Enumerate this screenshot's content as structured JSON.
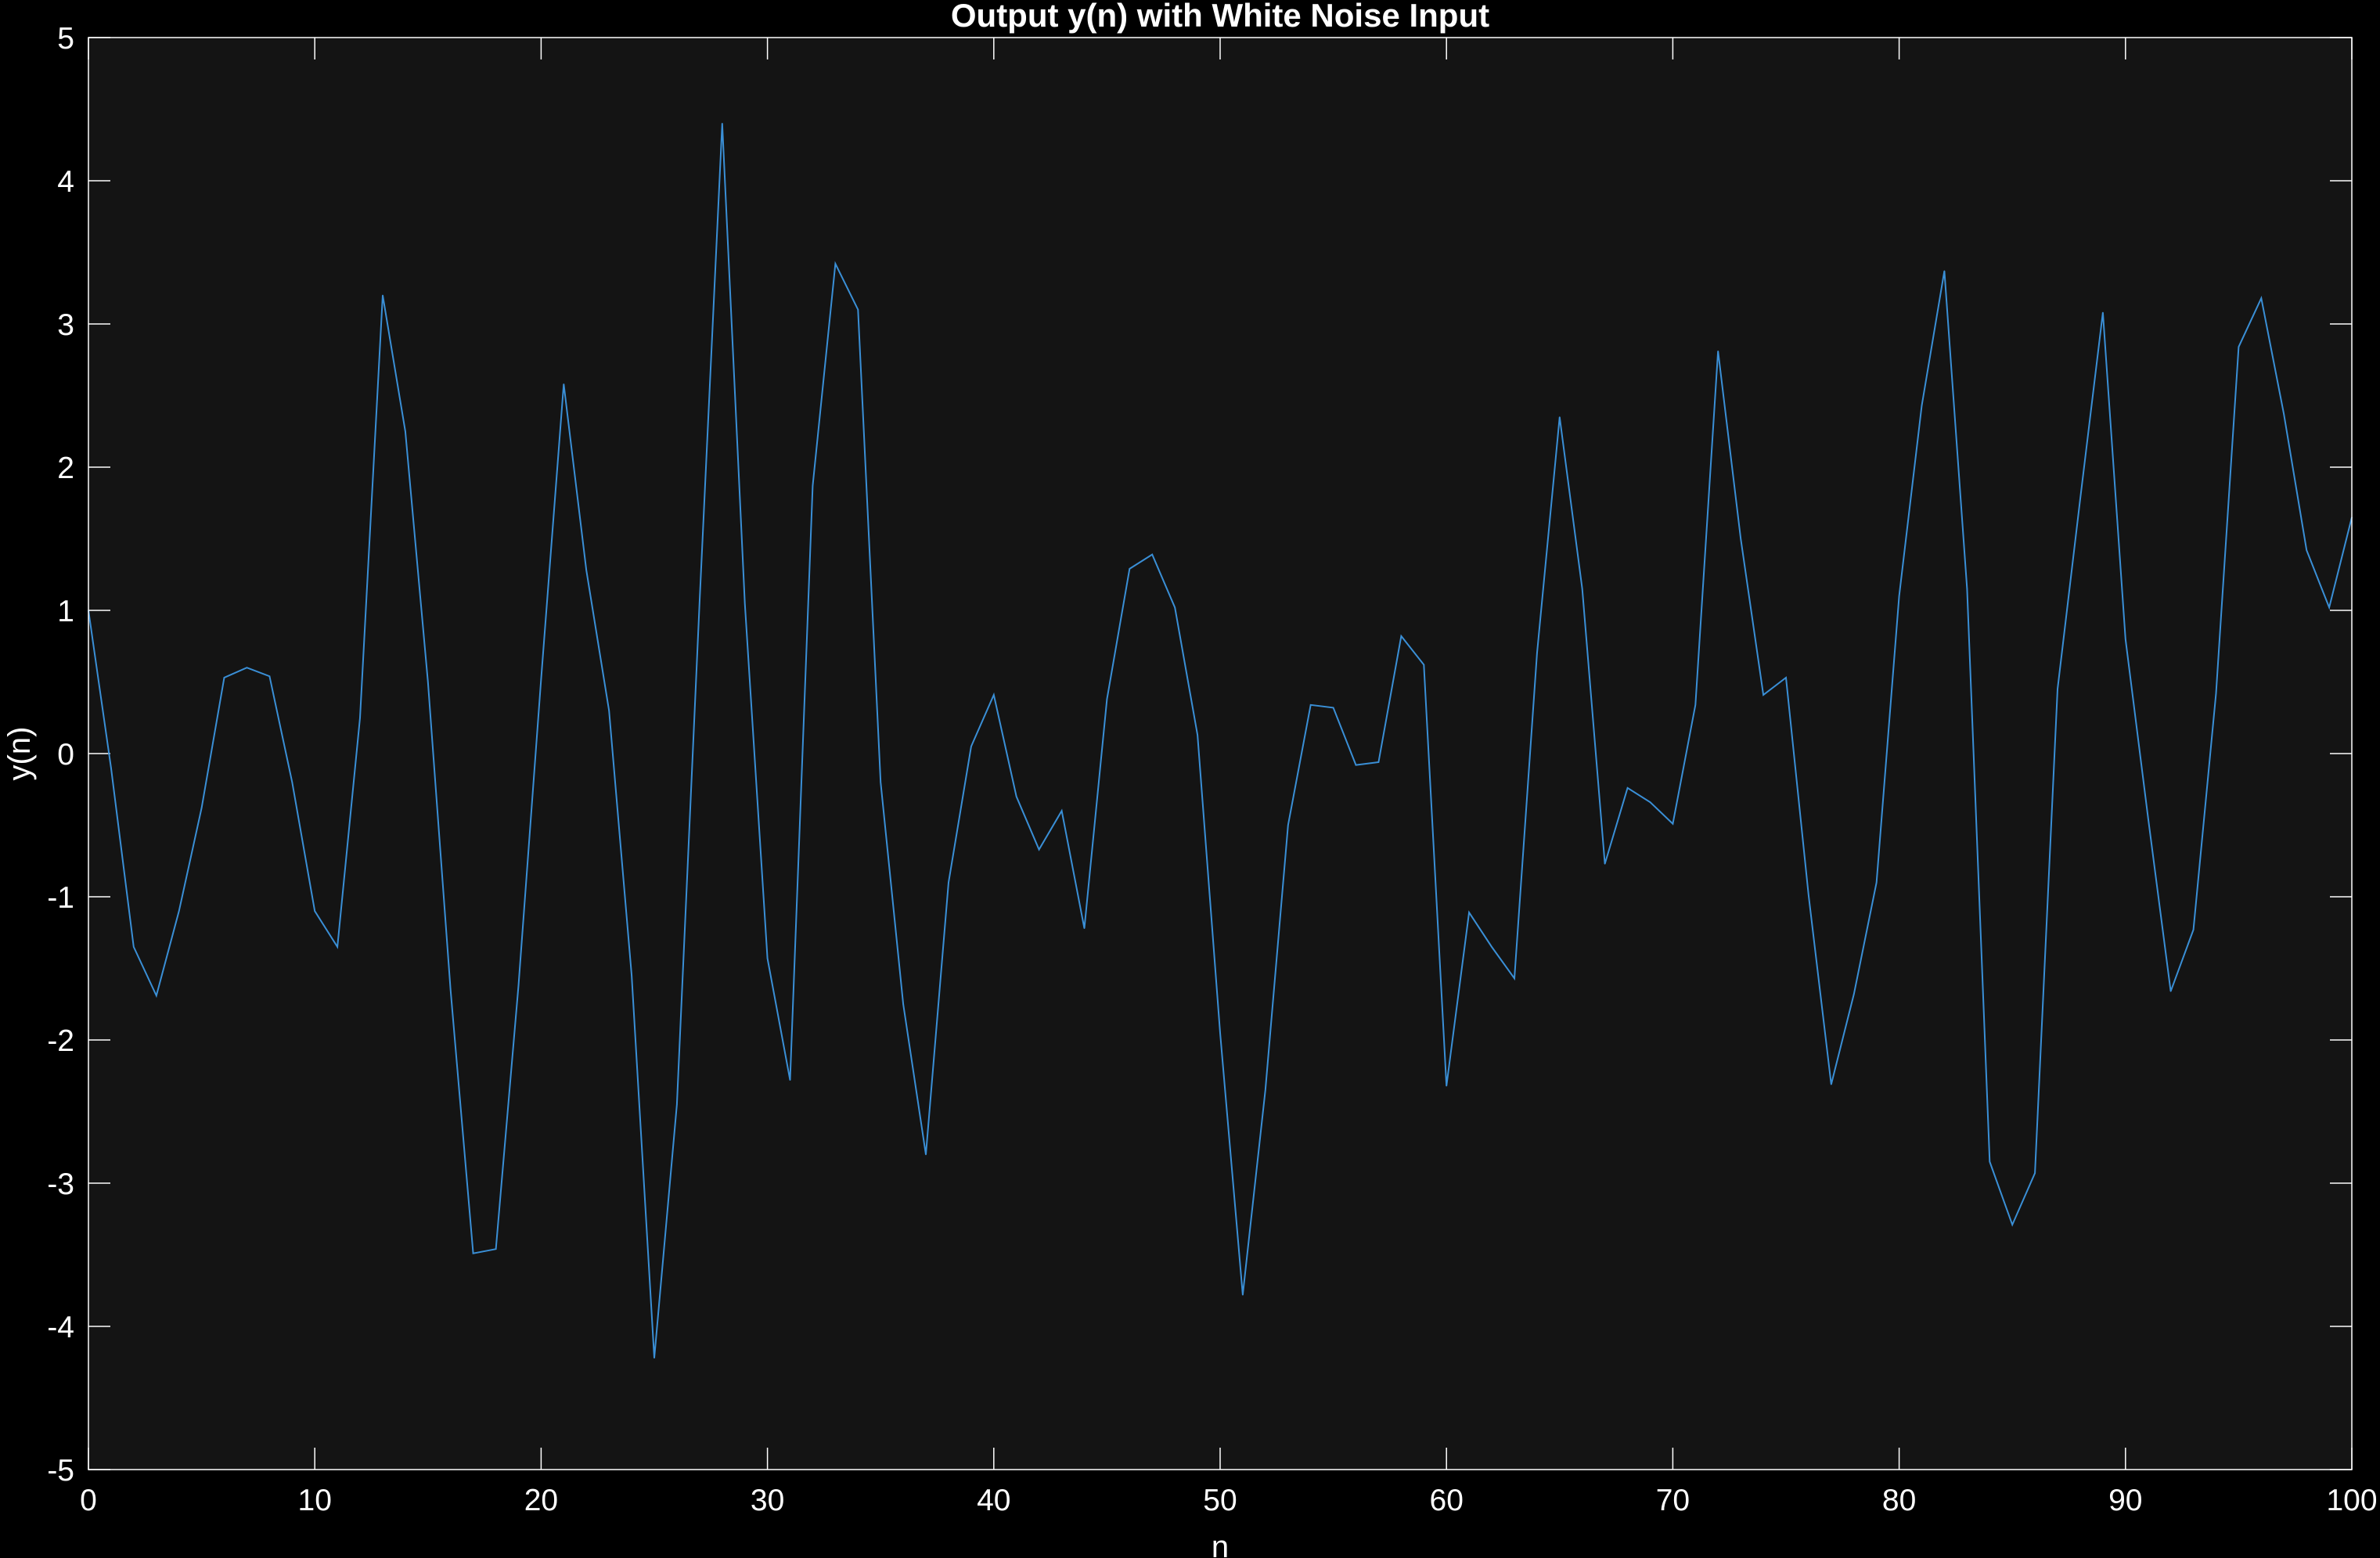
{
  "chart_data": {
    "type": "line",
    "title": "Output y(n) with White Noise Input",
    "xlabel": "n",
    "ylabel": "y(n)",
    "xlim": [
      0,
      100
    ],
    "ylim": [
      -5,
      5
    ],
    "xticks": [
      "0",
      "10",
      "20",
      "30",
      "40",
      "50",
      "60",
      "70",
      "80",
      "90",
      "100"
    ],
    "yticks": [
      "5",
      "4",
      "3",
      "2",
      "1",
      "0",
      "-1",
      "-2",
      "-3",
      "-4",
      "-5"
    ],
    "grid": false,
    "legend": "none",
    "series": [
      {
        "color": "#3a8fd6",
        "x": [
          0,
          1,
          2,
          3,
          4,
          5,
          6,
          7,
          8,
          9,
          10,
          11,
          12,
          13,
          14,
          15,
          16,
          17,
          18,
          19,
          20,
          21,
          22,
          23,
          24,
          25,
          26,
          27,
          28,
          29,
          30,
          31,
          32,
          33,
          34,
          35,
          36,
          37,
          38,
          39,
          40,
          41,
          42,
          43,
          44,
          45,
          46,
          47,
          48,
          49,
          50,
          51,
          52,
          53,
          54,
          55,
          56,
          57,
          58,
          59,
          60,
          61,
          62,
          63,
          64,
          65,
          66,
          67,
          68,
          69,
          70,
          71,
          72,
          73,
          74,
          75,
          76,
          77,
          78,
          79,
          80,
          81,
          82,
          83,
          84,
          85,
          86,
          87,
          88,
          89,
          90,
          91,
          92,
          93,
          94,
          95,
          96,
          97,
          98,
          99,
          100
        ],
        "values": [
          1.0,
          -0.1,
          -1.35,
          -1.69,
          -1.1,
          -0.38,
          0.53,
          0.6,
          0.54,
          -0.2,
          -1.1,
          -1.35,
          0.25,
          3.2,
          2.25,
          0.5,
          -1.65,
          -3.49,
          -3.46,
          -1.62,
          0.52,
          2.58,
          1.28,
          0.3,
          -1.55,
          -4.22,
          -2.45,
          1.05,
          4.4,
          1.05,
          -1.43,
          -2.28,
          1.87,
          3.42,
          3.1,
          -0.2,
          -1.75,
          -2.8,
          -0.9,
          0.05,
          0.41,
          -0.3,
          -0.67,
          -0.4,
          -1.22,
          0.38,
          1.29,
          1.39,
          1.02,
          0.13,
          -1.95,
          -3.78,
          -2.35,
          -0.5,
          0.34,
          0.32,
          -0.08,
          -0.06,
          0.82,
          0.62,
          -2.32,
          -1.11,
          -1.35,
          -1.57,
          0.7,
          2.35,
          1.15,
          -0.77,
          -0.24,
          -0.34,
          -0.49,
          0.34,
          2.81,
          1.5,
          0.41,
          0.53,
          -0.99,
          -2.31,
          -1.68,
          -0.9,
          1.1,
          2.43,
          3.37,
          1.15,
          -2.85,
          -3.29,
          -2.93,
          0.45,
          1.78,
          3.08,
          0.8,
          -0.45,
          -1.66,
          -1.23,
          0.42,
          2.84,
          3.18,
          2.37,
          1.42,
          1.02,
          1.65
        ]
      }
    ]
  },
  "style": {
    "figure_bg": "#000000",
    "axes_bg": "#141414",
    "axes_color": "#ffffff",
    "text_color": "#ffffff",
    "line_color": "#3a8fd6"
  }
}
